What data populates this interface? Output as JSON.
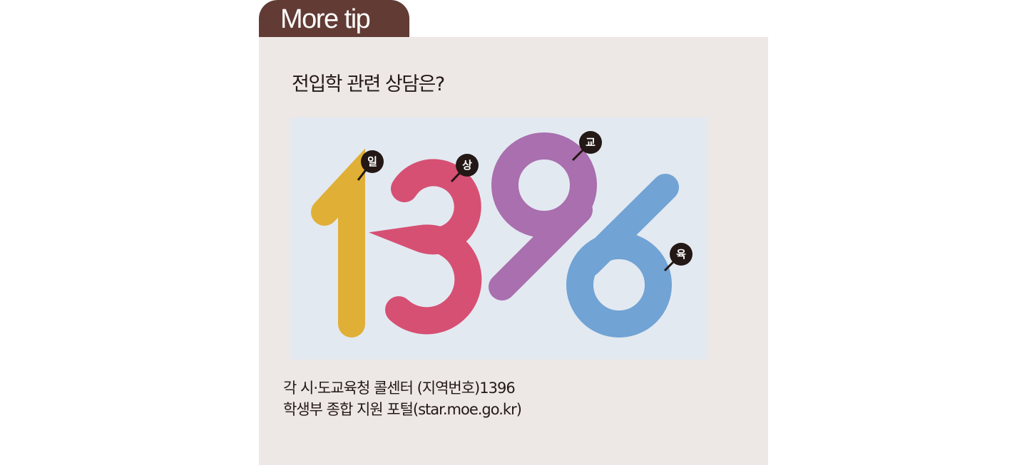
{
  "tab": {
    "label": "More tip"
  },
  "card": {
    "title": "전입학 관련 상담은?",
    "logo": {
      "number": "1396",
      "bubbles": [
        "일",
        "상",
        "교",
        "육"
      ],
      "colors": {
        "one": "#e0a516",
        "three": "#d4365e",
        "nine": "#a05aa3",
        "six": "#5e97cf",
        "background": "#e3e9f1"
      }
    },
    "lines": [
      "각 시·도교육청 콜센터 (지역번호)1396",
      "학생부 종합 지원 포털(star.moe.go.kr)"
    ]
  }
}
